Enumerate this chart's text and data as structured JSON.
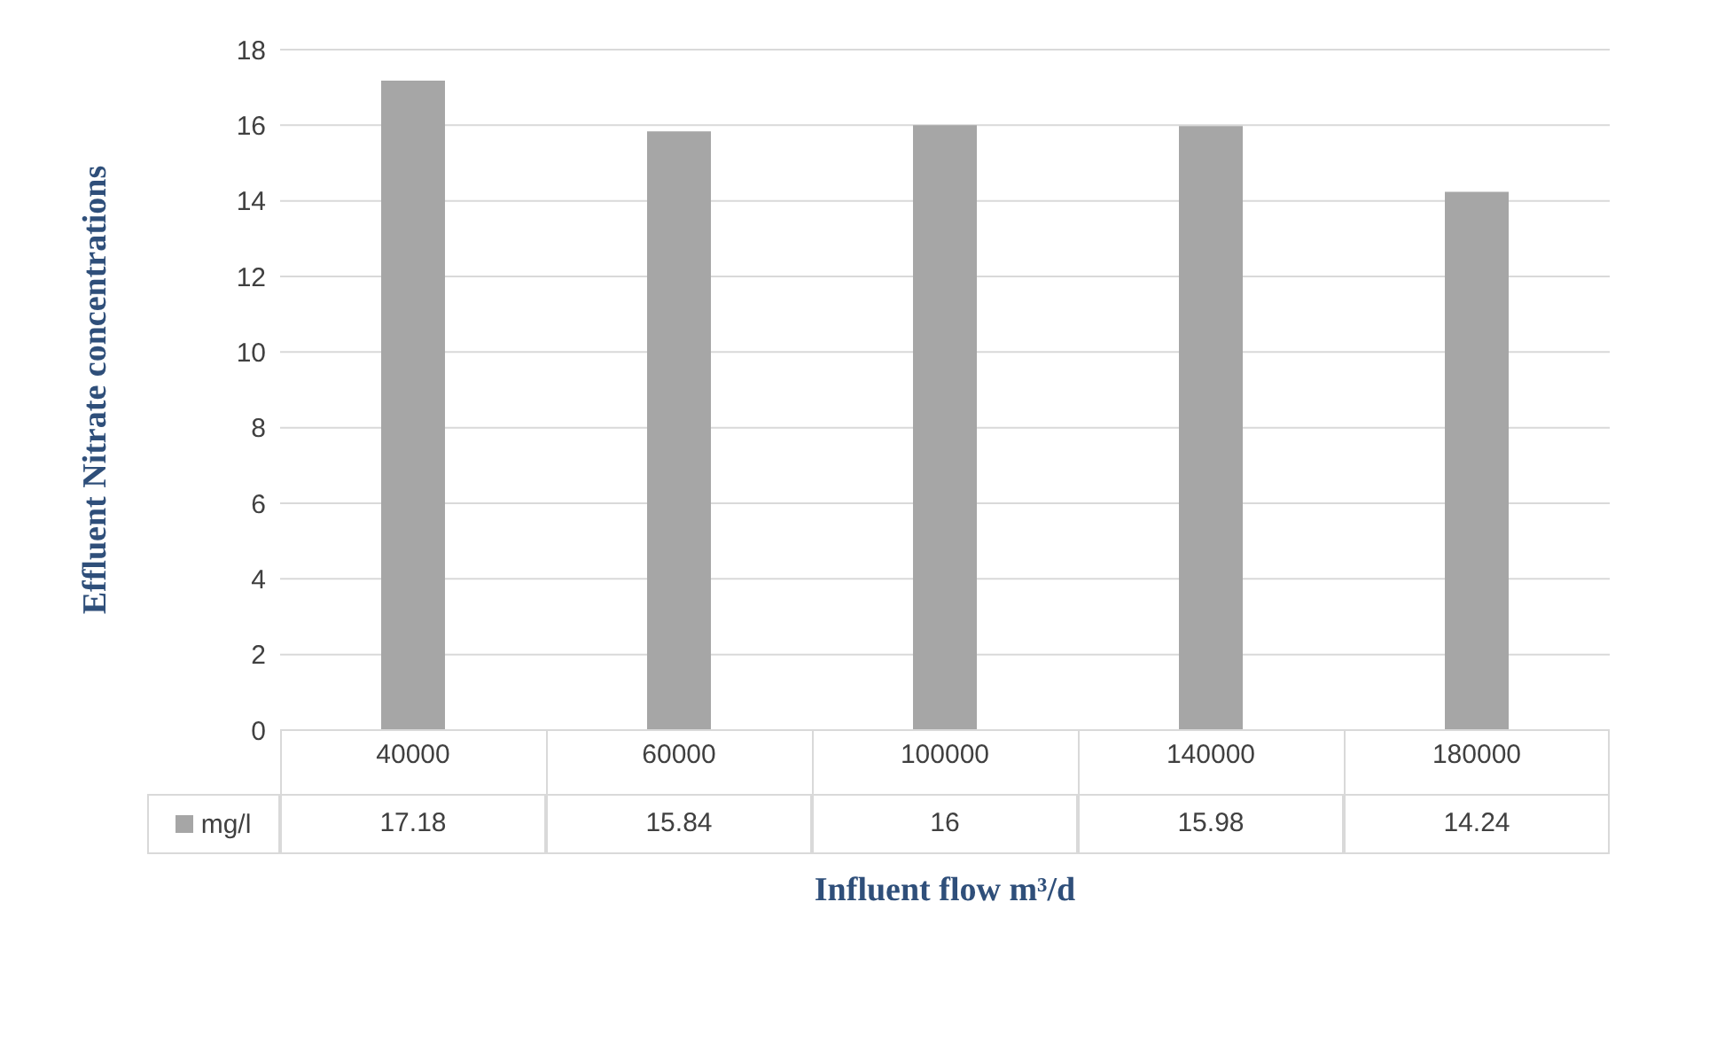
{
  "chart_data": {
    "type": "bar",
    "xlabel": "Influent flow m³/d",
    "ylabel": "Effluent Nitrate concentrations",
    "categories": [
      "40000",
      "60000",
      "100000",
      "140000",
      "180000"
    ],
    "series": [
      {
        "name": "mg/l",
        "color": "#a6a6a6",
        "values": [
          17.18,
          15.84,
          16,
          15.98,
          14.24
        ]
      }
    ],
    "ylim": [
      0,
      18
    ],
    "yticks": [
      0,
      2,
      4,
      6,
      8,
      10,
      12,
      14,
      16,
      18
    ],
    "grid": "y",
    "legend": "bottom",
    "data_labels": true
  }
}
